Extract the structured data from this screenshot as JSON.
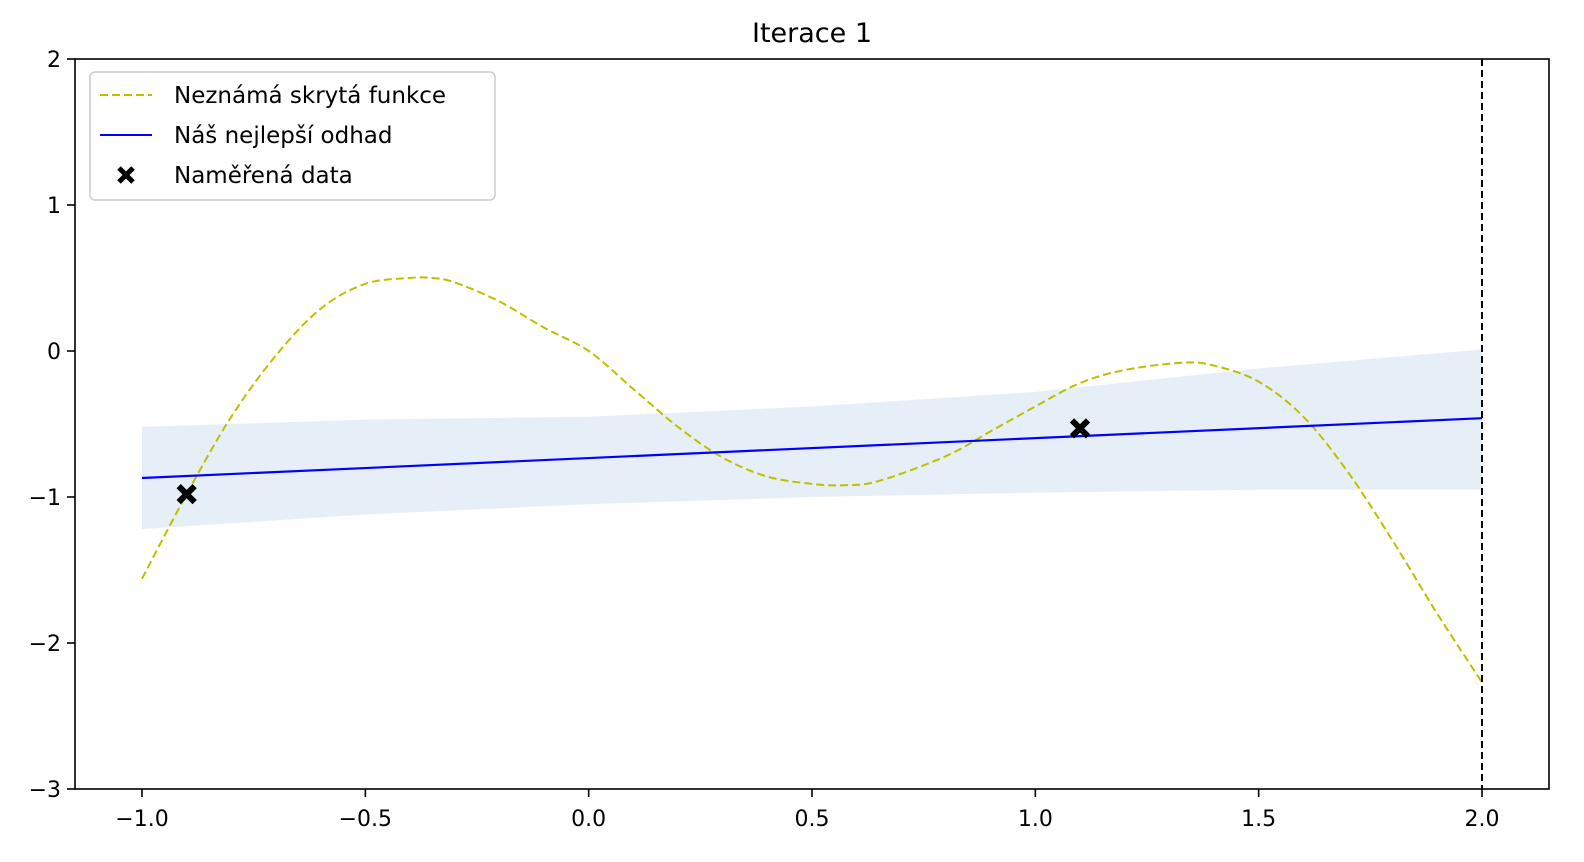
{
  "chart_data": {
    "type": "line",
    "title": "Iterace 1",
    "xlabel": "",
    "ylabel": "",
    "xlim": [
      -1.15,
      2.15
    ],
    "ylim": [
      -3,
      2
    ],
    "x_ticks": [
      -1.0,
      -0.5,
      0.0,
      0.5,
      1.0,
      1.5,
      2.0
    ],
    "x_tick_labels": [
      "−1.0",
      "−0.5",
      "0.0",
      "0.5",
      "1.0",
      "1.5",
      "2.0"
    ],
    "y_ticks": [
      -3,
      -2,
      -1,
      0,
      1,
      2
    ],
    "y_tick_labels": [
      "−3",
      "−2",
      "−1",
      "0",
      "1",
      "2"
    ],
    "grid": false,
    "legend_position": "top-left",
    "series": [
      {
        "name": "Neznámá skrytá funkce",
        "style": "dashed",
        "color": "#bfbf00",
        "x": [
          -1.0,
          -0.9,
          -0.8,
          -0.7,
          -0.6,
          -0.5,
          -0.4,
          -0.35,
          -0.3,
          -0.2,
          -0.1,
          0.0,
          0.1,
          0.2,
          0.3,
          0.4,
          0.5,
          0.57,
          0.65,
          0.8,
          0.9,
          1.0,
          1.1,
          1.2,
          1.33,
          1.4,
          1.5,
          1.6,
          1.7,
          1.8,
          1.9,
          2.0
        ],
        "y": [
          -1.56,
          -0.98,
          -0.45,
          -0.03,
          0.29,
          0.46,
          0.5,
          0.5,
          0.47,
          0.34,
          0.16,
          0.0,
          -0.26,
          -0.52,
          -0.73,
          -0.86,
          -0.91,
          -0.92,
          -0.89,
          -0.72,
          -0.55,
          -0.38,
          -0.22,
          -0.13,
          -0.08,
          -0.1,
          -0.21,
          -0.45,
          -0.83,
          -1.3,
          -1.8,
          -2.27
        ]
      },
      {
        "name": "Náš nejlepší odhad",
        "style": "solid",
        "color": "#0000ff",
        "x": [
          -1.0,
          2.0
        ],
        "y": [
          -0.87,
          -0.46
        ]
      },
      {
        "name": "Naměřená data",
        "style": "marker-x",
        "color": "#000000",
        "x": [
          -0.9,
          1.1
        ],
        "y": [
          -0.98,
          -0.53
        ]
      }
    ],
    "confidence_band": {
      "color": "#e6eff7",
      "x": [
        -1.0,
        -0.5,
        0.0,
        0.5,
        1.0,
        1.5,
        2.0
      ],
      "upper": [
        -0.52,
        -0.47,
        -0.45,
        -0.38,
        -0.28,
        -0.12,
        0.01
      ],
      "lower": [
        -1.22,
        -1.12,
        -1.05,
        -1.0,
        -0.97,
        -0.95,
        -0.95
      ]
    },
    "vline": {
      "x": 2.0,
      "style": "dashed",
      "color": "#000000"
    }
  }
}
